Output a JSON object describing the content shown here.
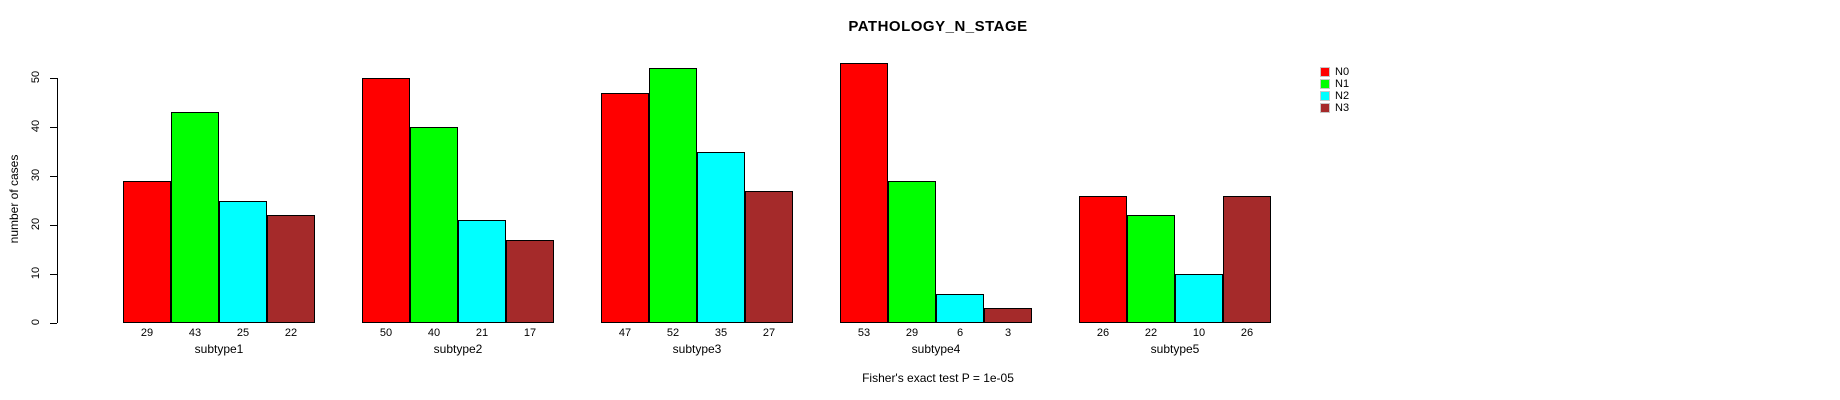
{
  "title": "PATHOLOGY_N_STAGE",
  "footer": "Fisher's exact test P = 1e-05",
  "chart_data": {
    "type": "bar",
    "title": "PATHOLOGY_N_STAGE",
    "xlabel": "",
    "ylabel": "number of cases",
    "ylim": [
      0,
      50
    ],
    "yticks": [
      0,
      10,
      20,
      30,
      40,
      50
    ],
    "grid": false,
    "legend_position": "right",
    "bar_value_labels_shown": true,
    "annotation": "Fisher's exact test P = 1e-05",
    "categories": [
      "subtype1",
      "subtype2",
      "subtype3",
      "subtype4",
      "subtype5"
    ],
    "series": [
      {
        "name": "N0",
        "color": "#FF0000",
        "values": [
          29,
          50,
          47,
          53,
          26
        ]
      },
      {
        "name": "N1",
        "color": "#00FF00",
        "values": [
          43,
          40,
          52,
          29,
          22
        ]
      },
      {
        "name": "N2",
        "color": "#00FFFF",
        "values": [
          25,
          21,
          35,
          6,
          10
        ]
      },
      {
        "name": "N3",
        "color": "#A52A2A",
        "values": [
          22,
          17,
          27,
          3,
          26
        ]
      }
    ]
  }
}
